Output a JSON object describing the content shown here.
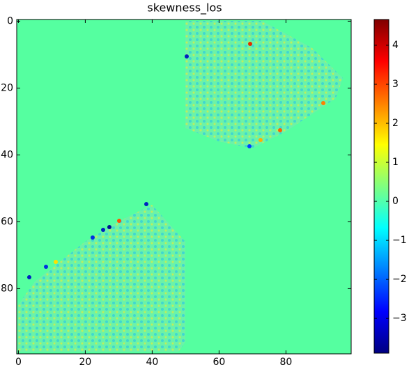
{
  "chart_data": {
    "type": "heatmap",
    "title": "skewness_los",
    "xlim": [
      -0.5,
      99.5
    ],
    "ylim": [
      99.5,
      -0.5
    ],
    "xticks": [
      0,
      20,
      40,
      60,
      80
    ],
    "yticks": [
      0,
      20,
      40,
      60,
      80
    ],
    "colormap": "jet",
    "colorbar": {
      "lim": [
        -3.89,
        4.66
      ],
      "ticks": [
        {
          "value": -3,
          "label": "−3"
        },
        {
          "value": -2,
          "label": "−2"
        },
        {
          "value": -1,
          "label": "−1"
        },
        0,
        1,
        2,
        3,
        4
      ]
    }
  }
}
